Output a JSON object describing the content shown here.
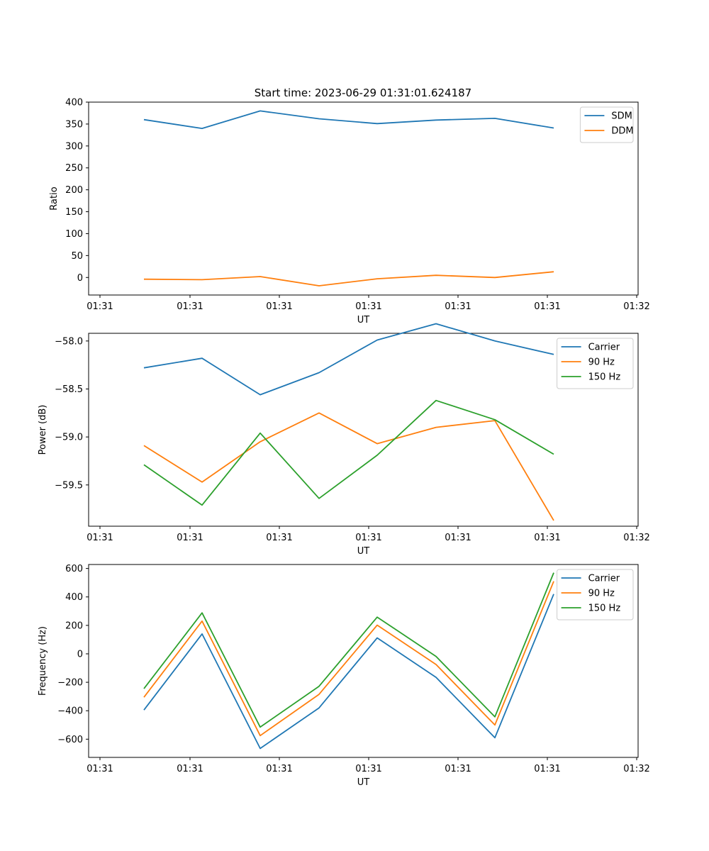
{
  "figure": {
    "title": "Start time: 2023-06-29 01:31:01.624187"
  },
  "chart_data": [
    {
      "type": "line",
      "xlabel": "UT",
      "ylabel": "Ratio",
      "x_tick_labels": [
        "01:31",
        "01:31",
        "01:31",
        "01:31",
        "01:31",
        "01:31",
        "01:31",
        "01:32"
      ],
      "y_ticks": [
        0,
        50,
        100,
        150,
        200,
        250,
        300,
        350,
        400
      ],
      "ylim": [
        -40,
        400
      ],
      "legend": "top-right",
      "series": [
        {
          "name": "SDM",
          "color": "#1f77b4",
          "values": [
            360,
            340,
            380,
            362,
            351,
            359,
            363,
            341
          ]
        },
        {
          "name": "DDM",
          "color": "#ff7f0e",
          "values": [
            -4,
            -5,
            2,
            -19,
            -3,
            5,
            0,
            13
          ]
        }
      ]
    },
    {
      "type": "line",
      "xlabel": "UT",
      "ylabel": "Power (dB)",
      "x_tick_labels": [
        "01:31",
        "01:31",
        "01:31",
        "01:31",
        "01:31",
        "01:31",
        "01:31",
        "01:32"
      ],
      "y_ticks": [
        -58.0,
        -58.5,
        -59.0,
        -59.5
      ],
      "y_tick_labels": [
        "−58.0",
        "−58.5",
        "−59.0",
        "−59.5"
      ],
      "ylim": [
        -59.93,
        -57.92
      ],
      "legend": "top-right",
      "series": [
        {
          "name": "Carrier",
          "color": "#1f77b4",
          "values": [
            -58.28,
            -58.18,
            -58.56,
            -58.33,
            -57.99,
            -57.82,
            -58.0,
            -58.14
          ]
        },
        {
          "name": "90 Hz",
          "color": "#ff7f0e",
          "values": [
            -59.09,
            -59.47,
            -59.05,
            -58.75,
            -59.07,
            -58.9,
            -58.83,
            -59.87
          ]
        },
        {
          "name": "150 Hz",
          "color": "#2ca02c",
          "values": [
            -59.29,
            -59.71,
            -58.96,
            -59.64,
            -59.19,
            -58.62,
            -58.82,
            -59.18
          ]
        }
      ]
    },
    {
      "type": "line",
      "xlabel": "UT",
      "ylabel": "Frequency (Hz)",
      "x_tick_labels": [
        "01:31",
        "01:31",
        "01:31",
        "01:31",
        "01:31",
        "01:31",
        "01:31",
        "01:32"
      ],
      "y_ticks": [
        600,
        400,
        200,
        0,
        -200,
        -400,
        -600
      ],
      "y_tick_labels": [
        "600",
        "400",
        "200",
        "0",
        "−200",
        "−400",
        "−600"
      ],
      "ylim": [
        -728,
        628
      ],
      "legend": "top-right",
      "series": [
        {
          "name": "Carrier",
          "color": "#1f77b4",
          "values": [
            -395,
            140,
            -665,
            -380,
            112,
            -165,
            -590,
            420
          ]
        },
        {
          "name": "90 Hz",
          "color": "#ff7f0e",
          "values": [
            -305,
            230,
            -575,
            -285,
            202,
            -75,
            -500,
            510
          ]
        },
        {
          "name": "150 Hz",
          "color": "#2ca02c",
          "values": [
            -245,
            288,
            -515,
            -228,
            258,
            -18,
            -443,
            570
          ]
        }
      ]
    }
  ]
}
